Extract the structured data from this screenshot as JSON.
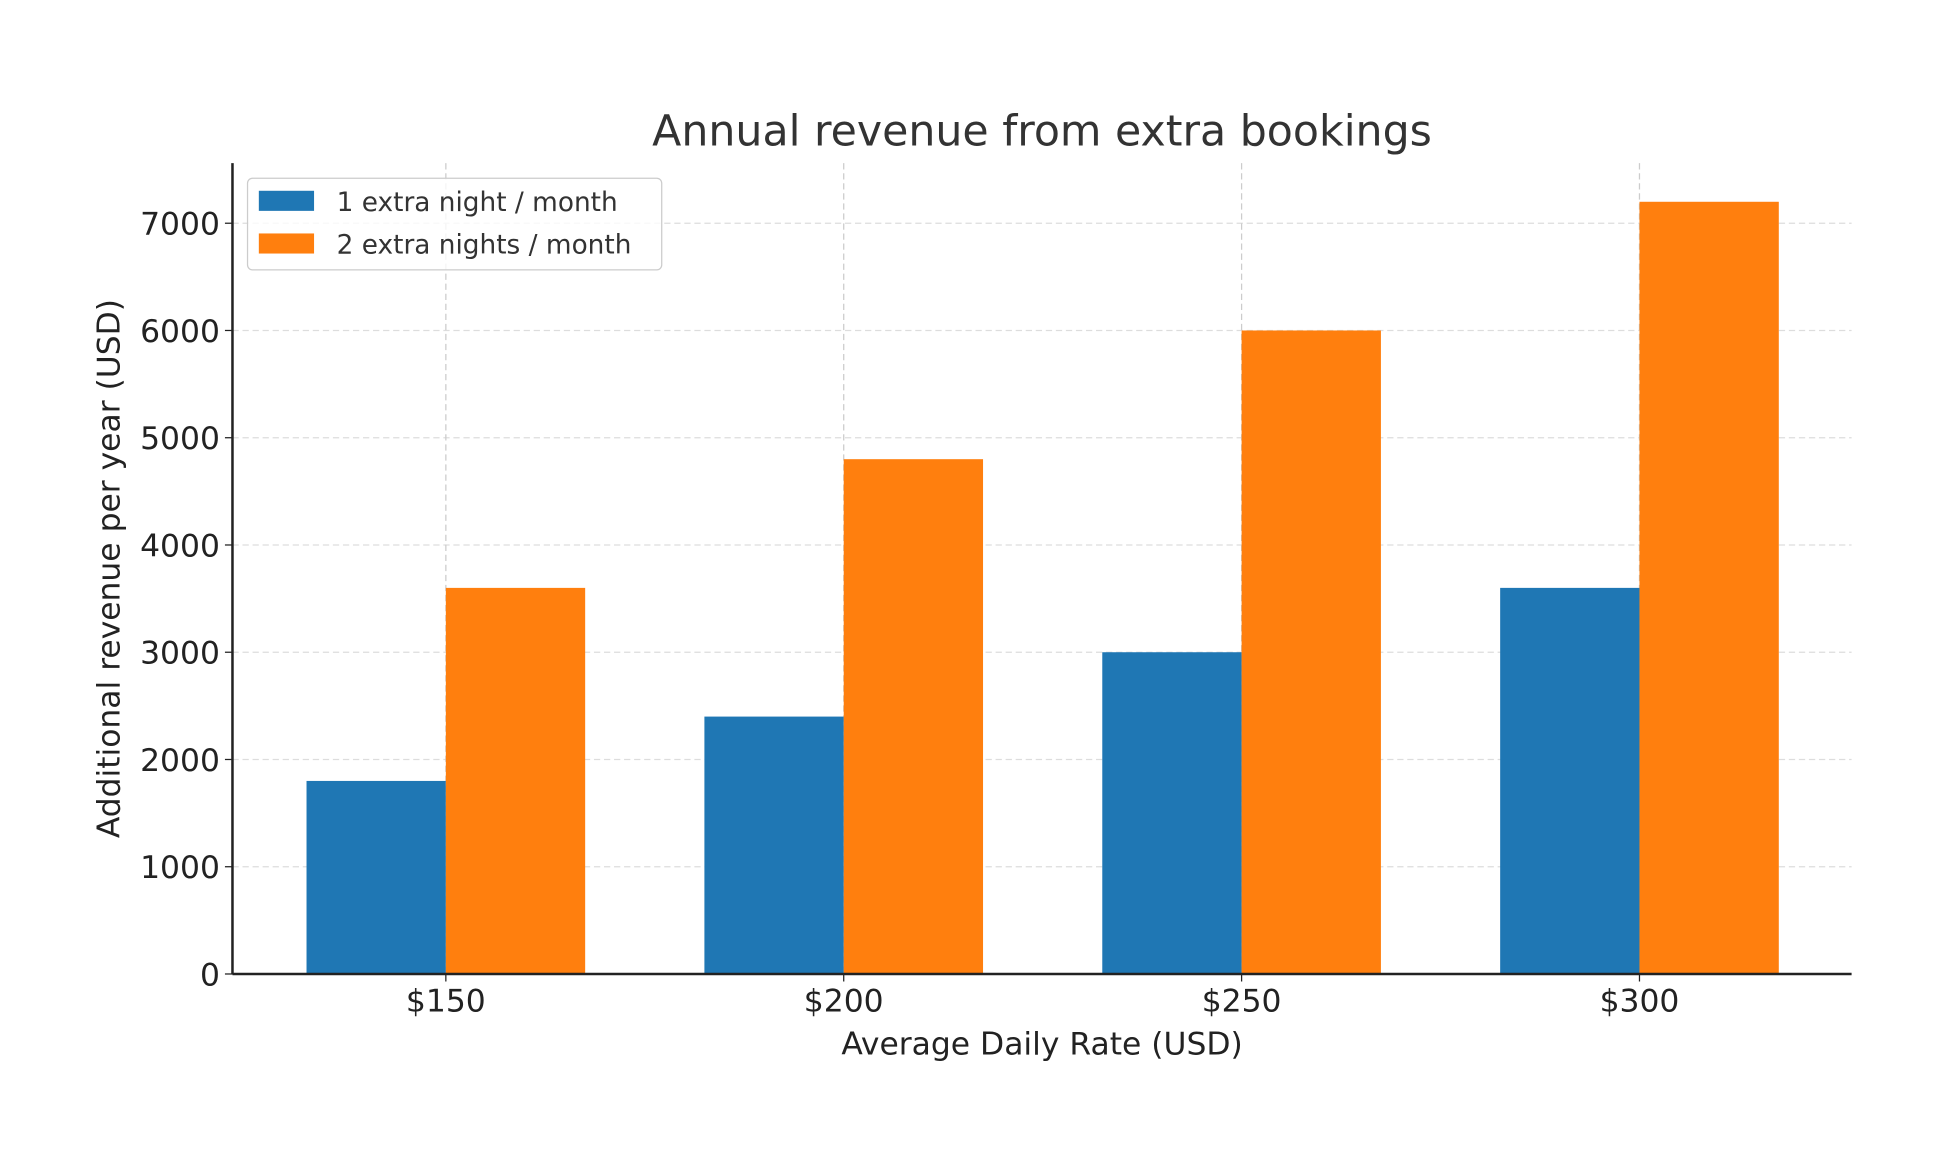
{
  "chart_data": {
    "type": "bar",
    "title": "Annual revenue from extra bookings",
    "xlabel": "Average Daily Rate (USD)",
    "ylabel": "Additional revenue per year (USD)",
    "categories": [
      "$150",
      "$200",
      "$250",
      "$300"
    ],
    "series": [
      {
        "name": "1 extra night / month",
        "values": [
          1800,
          2400,
          3000,
          3600
        ],
        "color": "#1f77b4"
      },
      {
        "name": "2 extra nights / month",
        "values": [
          3600,
          4800,
          6000,
          7200
        ],
        "color": "#ff7f0e"
      }
    ],
    "ylim": [
      0,
      7560
    ],
    "yticks": [
      0,
      1000,
      2000,
      3000,
      4000,
      5000,
      6000,
      7000
    ],
    "grid": true,
    "legend": "top-left"
  }
}
